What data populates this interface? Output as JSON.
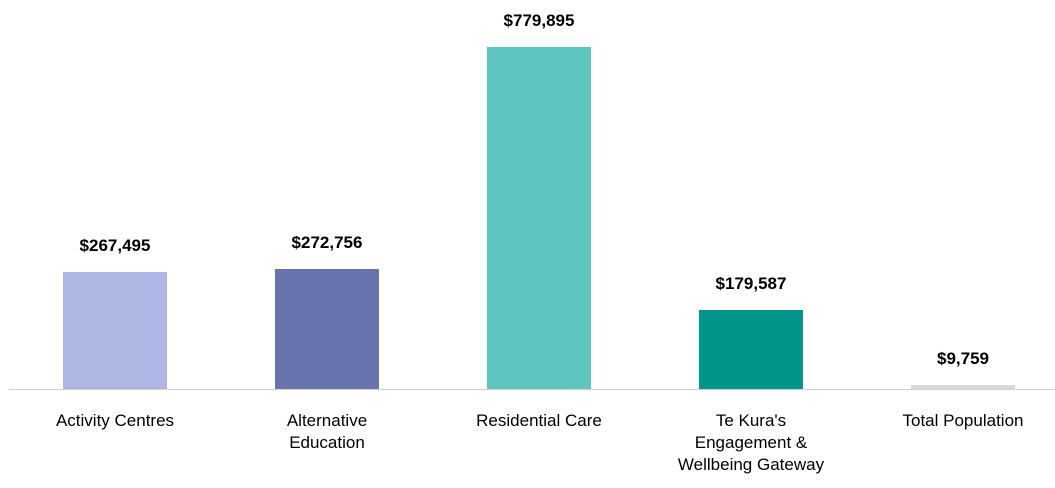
{
  "chart_data": {
    "type": "bar",
    "categories": [
      "Activity Centres",
      "Alternative Education",
      "Residential Care",
      "Te Kura's Engagement & Wellbeing Gateway",
      "Total Population"
    ],
    "values": [
      267495,
      272756,
      779895,
      179587,
      9759
    ],
    "value_labels": [
      "$267,495",
      "$272,756",
      "$779,895",
      "$179,587",
      "$9,759"
    ],
    "colors": [
      "#aeb6e3",
      "#6873ad",
      "#5ec6bf",
      "#00958a",
      "#d9d9d9"
    ]
  }
}
